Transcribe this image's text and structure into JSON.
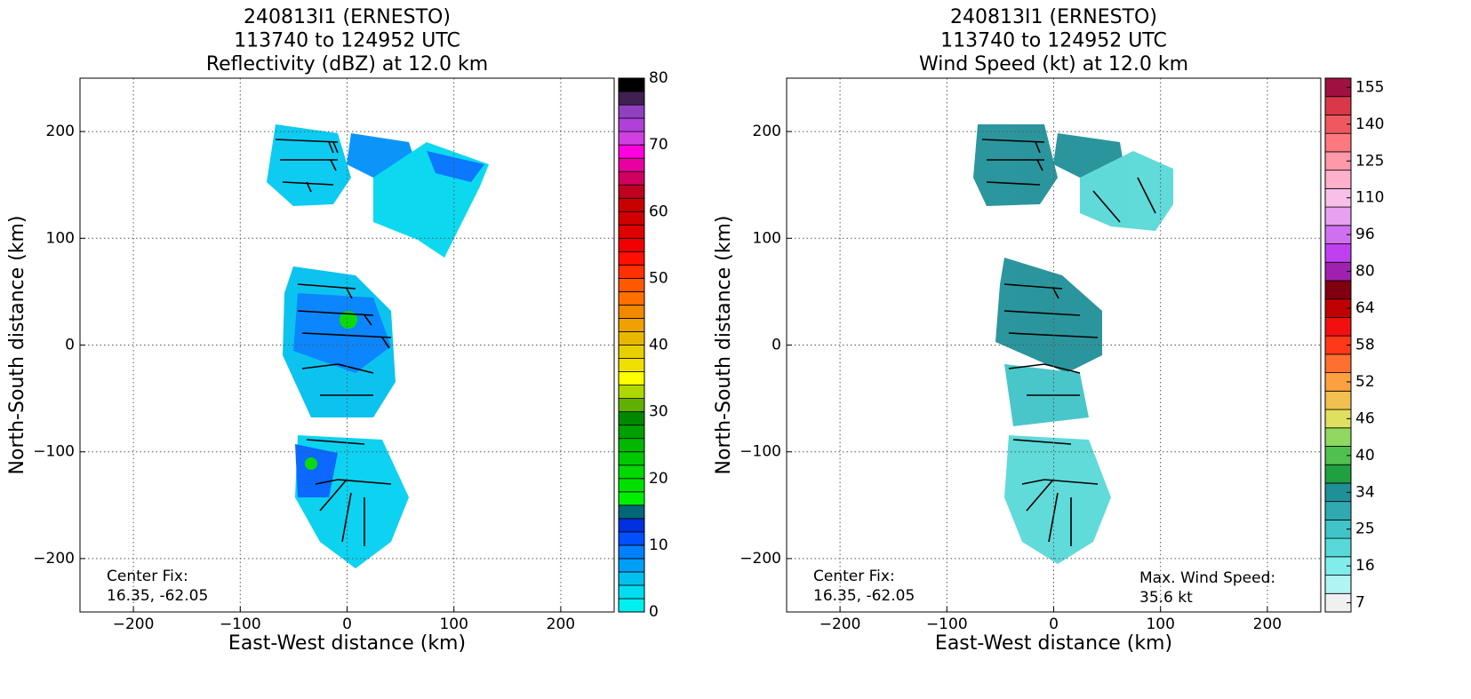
{
  "chart_data": [
    {
      "type": "heatmap",
      "title": [
        "240813I1 (ERNESTO)",
        "113740 to 124952 UTC",
        "Reflectivity (dBZ) at 12.0 km"
      ],
      "xlabel": "East-West distance (km)",
      "ylabel": "North-South distance (km)",
      "xlim": [
        -250,
        250
      ],
      "ylim": [
        -250,
        250
      ],
      "xticks": [
        {
          "value": -200,
          "label": "−200"
        },
        {
          "value": -100,
          "label": "−100"
        },
        0,
        100,
        200
      ],
      "yticks": [
        {
          "value": -200,
          "label": "−200"
        },
        {
          "value": -100,
          "label": "−100"
        },
        0,
        100,
        200
      ],
      "grid": true,
      "annotations": [
        [
          "Center Fix:",
          "16.35, -62.05"
        ]
      ],
      "colorbar": {
        "lim": [
          0,
          80
        ],
        "ticks": [
          0,
          10,
          20,
          30,
          40,
          50,
          60,
          70,
          80
        ],
        "colors": [
          "#00f0f0",
          "#00dcf0",
          "#00c0f0",
          "#00a0f8",
          "#0080ff",
          "#0050ff",
          "#0030e0",
          "#006878",
          "#00ee00",
          "#00e000",
          "#00d800",
          "#00c800",
          "#00b800",
          "#00a000",
          "#008800",
          "#60b000",
          "#b0d800",
          "#ffff00",
          "#f0e000",
          "#e8d000",
          "#e8b800",
          "#f0a000",
          "#f08800",
          "#ff7000",
          "#ff5800",
          "#ff3000",
          "#ff1000",
          "#f00000",
          "#e00000",
          "#d00000",
          "#c80000",
          "#c00020",
          "#d00060",
          "#e800a0",
          "#ff00e0",
          "#d040e0",
          "#b040d8",
          "#9040c0",
          "#402050",
          "#000000"
        ]
      }
    },
    {
      "type": "heatmap",
      "title": [
        "240813I1 (ERNESTO)",
        "113740 to 124952 UTC",
        "Wind Speed (kt) at 12.0 km"
      ],
      "xlabel": "East-West distance (km)",
      "ylabel": "North-South distance (km)",
      "xlim": [
        -250,
        250
      ],
      "ylim": [
        -250,
        250
      ],
      "xticks": [
        {
          "value": -200,
          "label": "−200"
        },
        {
          "value": -100,
          "label": "−100"
        },
        0,
        100,
        200
      ],
      "yticks": [
        {
          "value": -200,
          "label": "−200"
        },
        {
          "value": -100,
          "label": "−100"
        },
        0,
        100,
        200
      ],
      "grid": true,
      "annotations": [
        [
          "Center Fix:",
          "16.35, -62.05"
        ],
        [
          "Max. Wind Speed:",
          "35.6 kt"
        ]
      ],
      "colorbar": {
        "ticks": [
          7,
          16,
          25,
          34,
          40,
          46,
          52,
          58,
          64,
          80,
          96,
          110,
          125,
          140,
          155
        ],
        "colors": [
          "#f0f0f0",
          "#b0f4f4",
          "#80ecec",
          "#58d8d8",
          "#40c4c8",
          "#30aab0",
          "#209098",
          "#20a040",
          "#50c050",
          "#90d860",
          "#e0e060",
          "#f0c050",
          "#ffa040",
          "#ff7030",
          "#ff3818",
          "#f01010",
          "#c00000",
          "#800010",
          "#a020b0",
          "#c040f0",
          "#d070f0",
          "#e8a0f0",
          "#f8c0e8",
          "#ffb0cc",
          "#ff98a8",
          "#ff7880",
          "#f05860",
          "#d83848",
          "#a01040"
        ]
      }
    }
  ]
}
